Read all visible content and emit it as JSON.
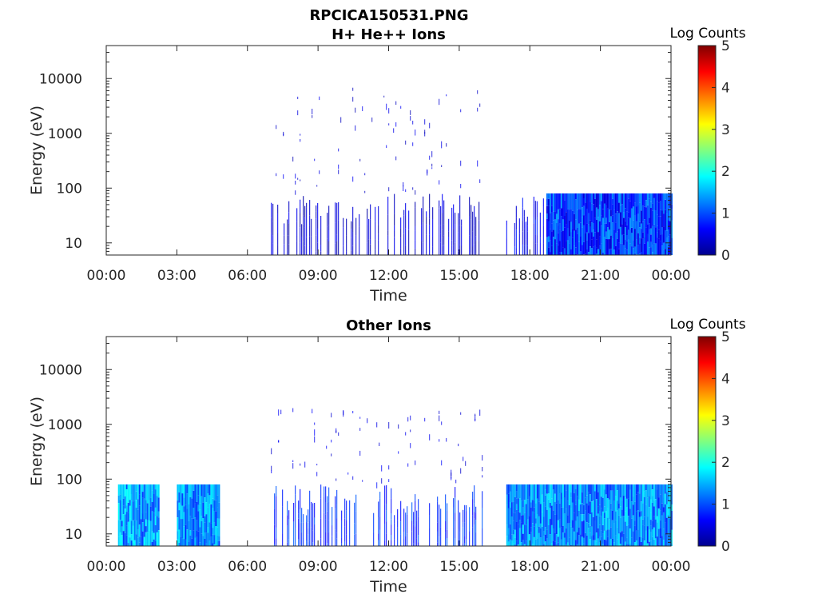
{
  "figure": {
    "title_line1": "RPCICA150531.PNG"
  },
  "chart_data": [
    {
      "type": "heatmap",
      "title": "H+ He++ Ions",
      "xlabel": "Time",
      "ylabel": "Energy (eV)",
      "x_tick_labels": [
        "00:00",
        "03:00",
        "06:00",
        "09:00",
        "12:00",
        "15:00",
        "18:00",
        "21:00",
        "00:00"
      ],
      "x_range_hours": [
        0,
        24
      ],
      "yscale": "log",
      "y_range_ev": [
        6,
        40000
      ],
      "y_ticks": [
        10,
        100,
        1000,
        10000
      ],
      "y_tick_labels": [
        "10",
        "100",
        "1000",
        "10000"
      ],
      "colorbar": {
        "label": "Log Counts",
        "range": [
          0,
          5
        ],
        "tick_labels": [
          "0",
          "1",
          "2",
          "3",
          "4",
          "5"
        ],
        "colormap": "jet"
      },
      "data_intervals": [
        {
          "start_h": 7.0,
          "end_h": 16.0,
          "energy_max_ev": 80,
          "log_counts_typical": 0.3,
          "sparse": true
        },
        {
          "start_h": 7.0,
          "end_h": 16.0,
          "energy_max_ev": 10000,
          "log_counts_typical": 0.2,
          "sparse": true,
          "scattered": true
        },
        {
          "start_h": 17.0,
          "end_h": 18.7,
          "energy_max_ev": 80,
          "log_counts_typical": 0.5,
          "sparse": true
        },
        {
          "start_h": 18.7,
          "end_h": 24.0,
          "energy_max_ev": 80,
          "log_counts_typical": 0.8,
          "sparse": false
        }
      ]
    },
    {
      "type": "heatmap",
      "title": "Other Ions",
      "xlabel": "Time",
      "ylabel": "Energy (eV)",
      "x_tick_labels": [
        "00:00",
        "03:00",
        "06:00",
        "09:00",
        "12:00",
        "15:00",
        "18:00",
        "21:00",
        "00:00"
      ],
      "x_range_hours": [
        0,
        24
      ],
      "yscale": "log",
      "y_range_ev": [
        6,
        40000
      ],
      "y_ticks": [
        10,
        100,
        1000,
        10000
      ],
      "y_tick_labels": [
        "10",
        "100",
        "1000",
        "10000"
      ],
      "colorbar": {
        "label": "Log Counts",
        "range": [
          0,
          5
        ],
        "tick_labels": [
          "0",
          "1",
          "2",
          "3",
          "4",
          "5"
        ],
        "colormap": "jet"
      },
      "data_intervals": [
        {
          "start_h": 0.5,
          "end_h": 2.2,
          "energy_max_ev": 80,
          "log_counts_typical": 1.3,
          "sparse": false
        },
        {
          "start_h": 3.0,
          "end_h": 4.8,
          "energy_max_ev": 80,
          "log_counts_typical": 1.2,
          "sparse": false
        },
        {
          "start_h": 7.0,
          "end_h": 16.0,
          "energy_max_ev": 80,
          "log_counts_typical": 0.8,
          "sparse": true
        },
        {
          "start_h": 7.0,
          "end_h": 16.0,
          "energy_max_ev": 2000,
          "log_counts_typical": 0.3,
          "sparse": true,
          "scattered": true
        },
        {
          "start_h": 17.0,
          "end_h": 24.0,
          "energy_max_ev": 80,
          "log_counts_typical": 1.2,
          "sparse": false
        }
      ]
    }
  ]
}
